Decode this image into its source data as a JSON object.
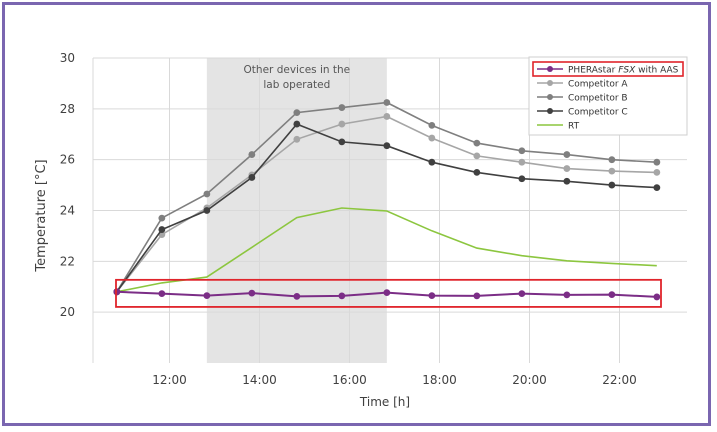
{
  "chart_data": {
    "type": "line",
    "title": "",
    "xlabel": "Time [h]",
    "ylabel": "Temperature [°C]",
    "xlim": [
      10.3,
      23.5
    ],
    "ylim": [
      18,
      30
    ],
    "x_ticks": [
      12,
      14,
      16,
      18,
      20,
      22
    ],
    "x_tick_labels": [
      "12:00",
      "14:00",
      "16:00",
      "18:00",
      "20:00",
      "22:00"
    ],
    "y_ticks": [
      20,
      22,
      24,
      26,
      28,
      30
    ],
    "y_tick_labels": [
      "20",
      "22",
      "24",
      "26",
      "28",
      "30"
    ],
    "grid": true,
    "legend_position": "top-right",
    "shaded_region": {
      "x_start": 12.83,
      "x_end": 16.83,
      "label_line1": "Other devices in the",
      "label_line2": "lab operated",
      "color": "#e4e4e4"
    },
    "highlight_color": "#e0242b",
    "series": [
      {
        "name": "PHERAstar",
        "name_italic": "FSX",
        "name_suffix": " with AAS",
        "color": "#7b2d86",
        "markers": true,
        "highlight": true,
        "x": [
          10.83,
          11.83,
          12.83,
          13.83,
          14.83,
          15.83,
          16.83,
          17.83,
          18.83,
          19.83,
          20.83,
          21.83,
          22.83
        ],
        "y": [
          20.8,
          20.73,
          20.65,
          20.75,
          20.62,
          20.64,
          20.77,
          20.65,
          20.64,
          20.73,
          20.68,
          20.69,
          20.6
        ]
      },
      {
        "name": "Competitor A",
        "color": "#a6a6a6",
        "markers": true,
        "x": [
          10.83,
          11.83,
          12.83,
          13.83,
          14.83,
          15.83,
          16.83,
          17.83,
          18.83,
          19.83,
          20.83,
          21.83,
          22.83
        ],
        "y": [
          20.8,
          23.05,
          24.1,
          25.4,
          26.8,
          27.4,
          27.7,
          26.85,
          26.15,
          25.9,
          25.65,
          25.55,
          25.5
        ]
      },
      {
        "name": "Competitor B",
        "color": "#7f7f7f",
        "markers": true,
        "x": [
          10.83,
          11.83,
          12.83,
          13.83,
          14.83,
          15.83,
          16.83,
          17.83,
          18.83,
          19.83,
          20.83,
          21.83,
          22.83
        ],
        "y": [
          20.8,
          23.7,
          24.65,
          26.2,
          27.85,
          28.05,
          28.25,
          27.35,
          26.65,
          26.35,
          26.2,
          26.0,
          25.9
        ]
      },
      {
        "name": "Competitor C",
        "color": "#404040",
        "markers": true,
        "x": [
          10.83,
          11.83,
          12.83,
          13.83,
          14.83,
          15.83,
          16.83,
          17.83,
          18.83,
          19.83,
          20.83,
          21.83,
          22.83
        ],
        "y": [
          20.8,
          23.25,
          24.0,
          25.3,
          27.4,
          26.7,
          26.55,
          25.9,
          25.5,
          25.25,
          25.15,
          25.0,
          24.9
        ]
      },
      {
        "name": "RT",
        "color": "#8cc63f",
        "markers": false,
        "x": [
          10.83,
          11.83,
          12.83,
          13.83,
          14.83,
          15.83,
          16.83,
          17.83,
          18.83,
          19.83,
          20.83,
          21.83,
          22.83
        ],
        "y": [
          20.8,
          21.15,
          21.38,
          22.55,
          23.72,
          24.1,
          23.98,
          23.2,
          22.52,
          22.22,
          22.02,
          21.92,
          21.83
        ]
      }
    ]
  }
}
